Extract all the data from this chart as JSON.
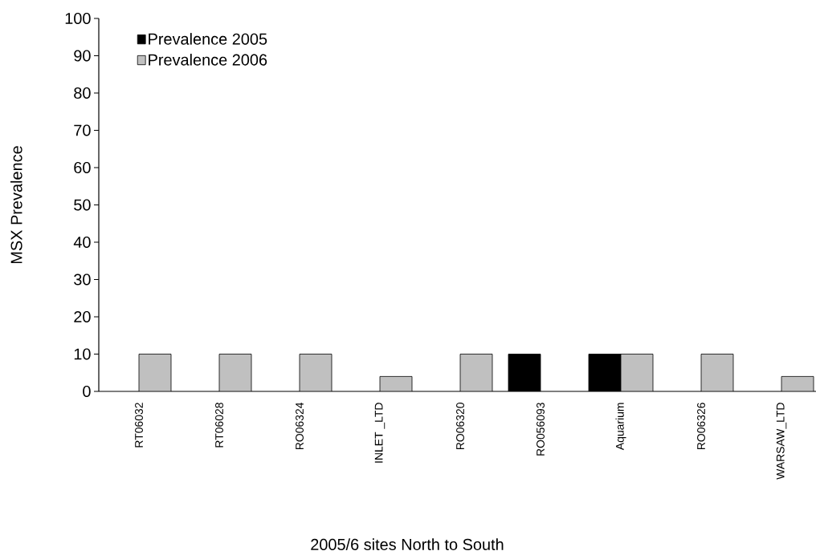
{
  "chart_data": {
    "type": "bar",
    "xlabel": "2005/6 sites North to South",
    "ylabel": "MSX Prevalence",
    "categories": [
      "RT06032",
      "RT06028",
      "RO06324",
      "INLET _LTD",
      "RO06320",
      "RO056093",
      "Aquarium",
      "RO06326",
      "WARSAW_LTD"
    ],
    "series": [
      {
        "name": "Prevalence 2005",
        "color": "#000000",
        "values": [
          null,
          null,
          null,
          null,
          null,
          10,
          10,
          null,
          null
        ]
      },
      {
        "name": "Prevalence 2006",
        "color": "#c0c0c0",
        "values": [
          10,
          10,
          10,
          4,
          10,
          null,
          10,
          10,
          4
        ]
      }
    ],
    "ylim": [
      0,
      100
    ],
    "yticks": [
      0,
      10,
      20,
      30,
      40,
      50,
      60,
      70,
      80,
      90,
      100
    ],
    "grid": false,
    "legend": "top left"
  }
}
